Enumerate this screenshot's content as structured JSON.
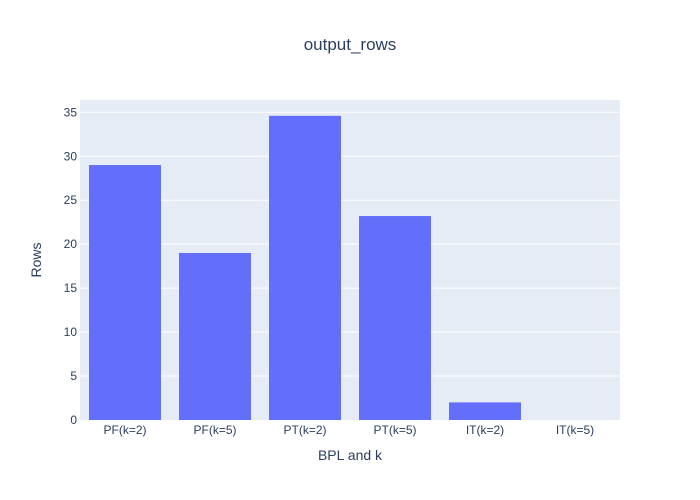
{
  "chart_data": {
    "type": "bar",
    "title": "output_rows",
    "xlabel": "BPL and k",
    "ylabel": "Rows",
    "categories": [
      "PF(k=2)",
      "PF(k=5)",
      "PT(k=2)",
      "PT(k=5)",
      "IT(k=2)",
      "IT(k=5)"
    ],
    "values": [
      29,
      19,
      34.6,
      23.2,
      2,
      0
    ],
    "ylim": [
      0,
      36.4
    ],
    "yticks": [
      0,
      5,
      10,
      15,
      20,
      25,
      30,
      35
    ],
    "grid": true,
    "bar_color": "#636efa",
    "plot_bg": "#e5ecf6"
  }
}
